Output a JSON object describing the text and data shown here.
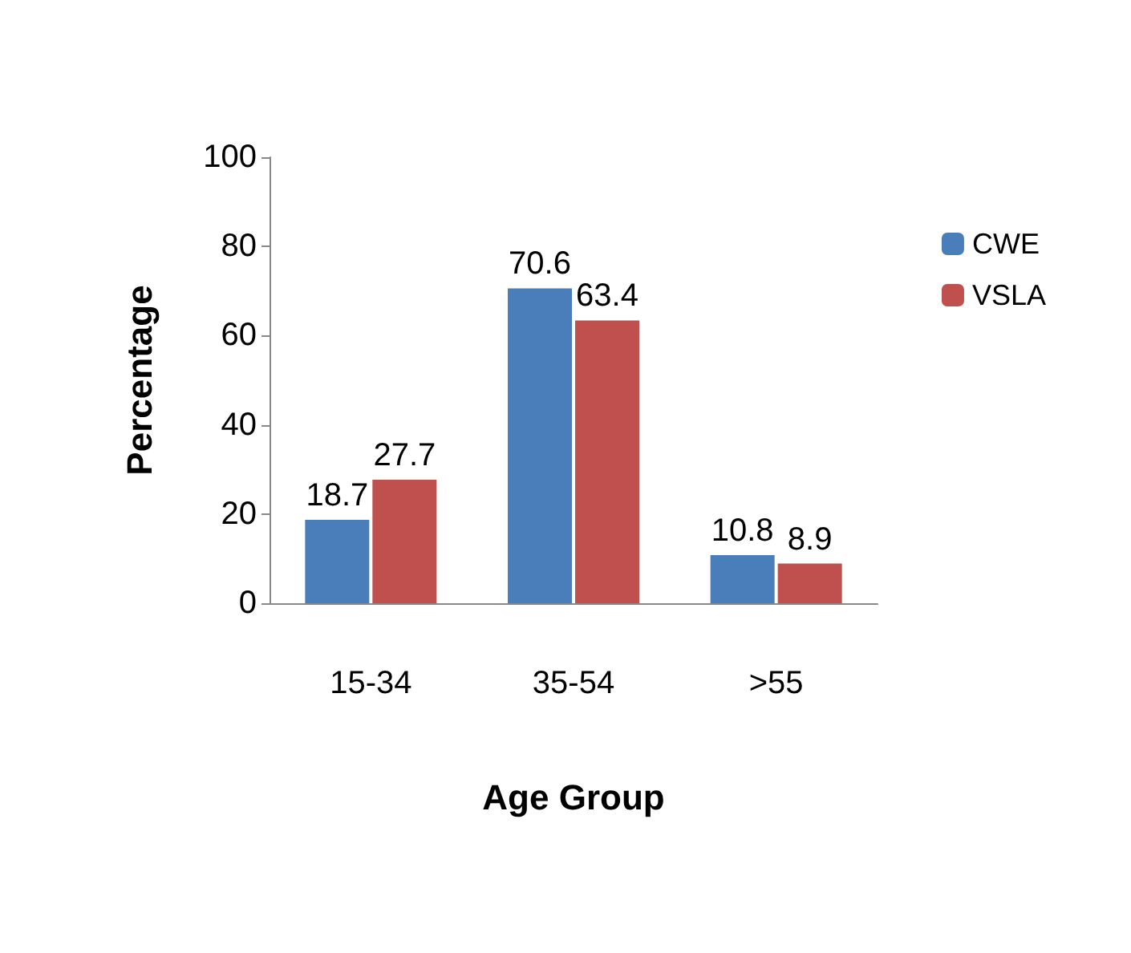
{
  "chart_data": {
    "type": "bar",
    "xlabel": "Age Group",
    "ylabel": "Percentage",
    "categories": [
      "15-34",
      "35-54",
      ">55"
    ],
    "series": [
      {
        "name": "CWE",
        "color": "#4a7ebb",
        "values": [
          18.7,
          70.6,
          10.8
        ]
      },
      {
        "name": "VSLA",
        "color": "#c0504d",
        "values": [
          27.7,
          63.4,
          8.9
        ]
      }
    ],
    "ylim": [
      0,
      100
    ],
    "yticks": [
      0,
      20,
      40,
      60,
      80,
      100
    ],
    "grid": false,
    "legend": "top right",
    "data_labels": true
  }
}
